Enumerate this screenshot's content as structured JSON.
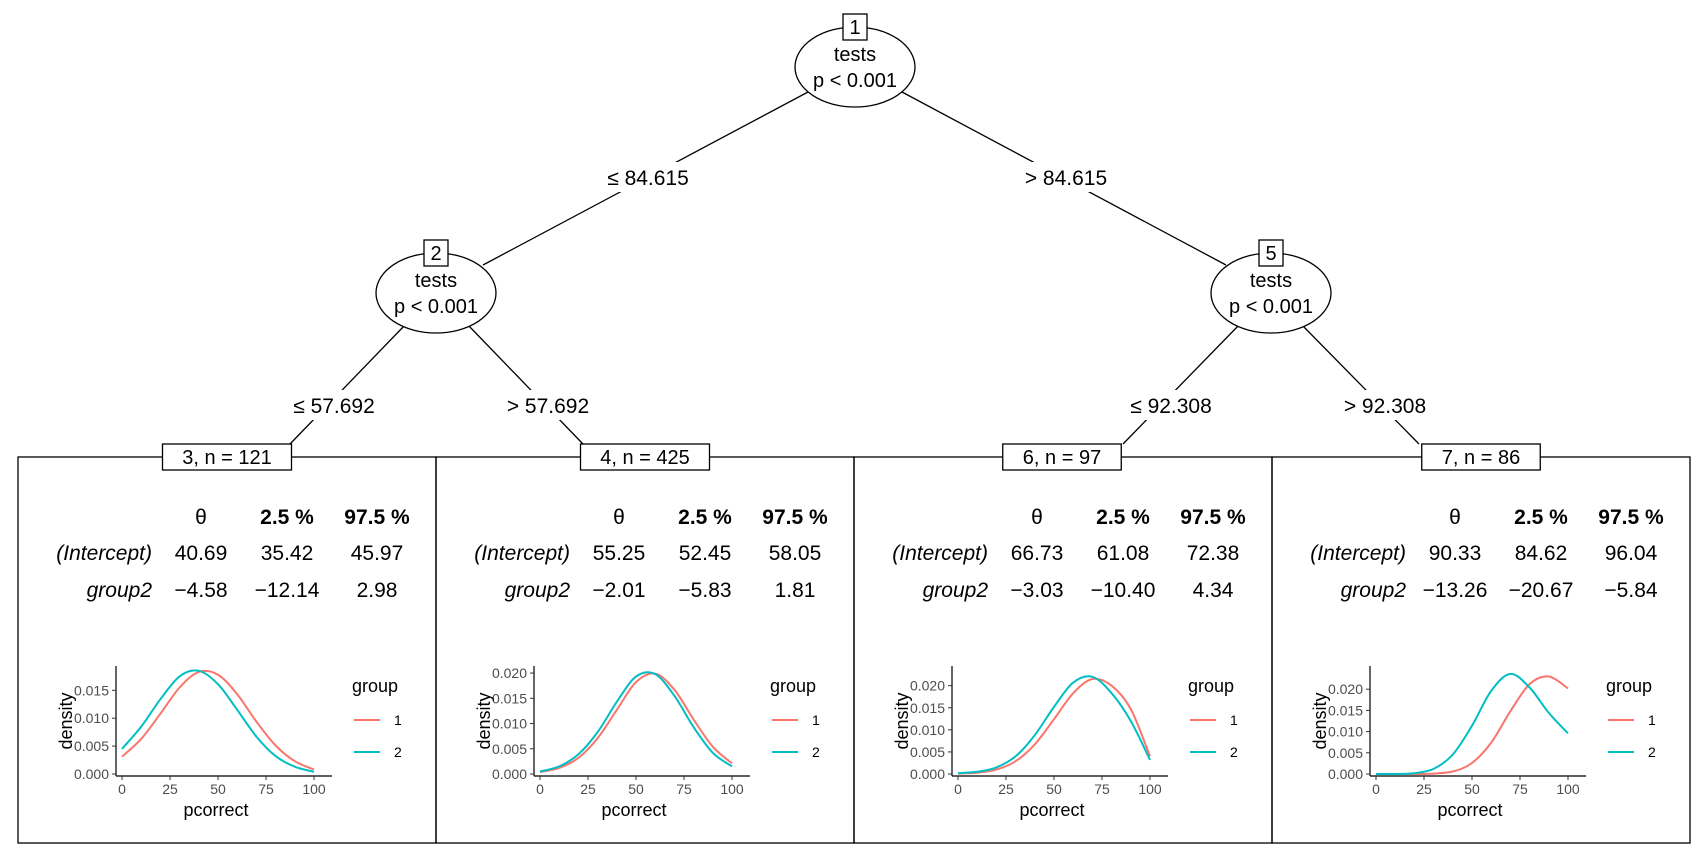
{
  "tree": {
    "nodes": [
      {
        "id": "1",
        "variable": "tests",
        "p": "p < 0.001"
      },
      {
        "id": "2",
        "variable": "tests",
        "p": "p < 0.001"
      },
      {
        "id": "5",
        "variable": "tests",
        "p": "p < 0.001"
      }
    ],
    "edges": [
      {
        "from": "1",
        "to": "2",
        "label": "≤ 84.615"
      },
      {
        "from": "1",
        "to": "5",
        "label": "> 84.615"
      },
      {
        "from": "2",
        "to": "3",
        "label": "≤ 57.692"
      },
      {
        "from": "2",
        "to": "4",
        "label": "> 57.692"
      },
      {
        "from": "5",
        "to": "6",
        "label": "≤ 92.308"
      },
      {
        "from": "5",
        "to": "7",
        "label": "> 92.308"
      }
    ]
  },
  "table_header": {
    "theta": "θ",
    "lo": "2.5 %",
    "hi": "97.5 %"
  },
  "plot_labels": {
    "xlabel": "pcorrect",
    "ylabel": "density",
    "legend_title": "group",
    "legend_items": [
      "1",
      "2"
    ],
    "x_ticks": [
      "0",
      "25",
      "50",
      "75",
      "100"
    ]
  },
  "colors": {
    "group1": "#F8766D",
    "group2": "#00BFC4"
  },
  "chart_data": [
    {
      "type": "line",
      "node_label": "3, n = 121",
      "table": [
        {
          "term": "(Intercept)",
          "theta": "40.69",
          "lo": "35.42",
          "hi": "45.97"
        },
        {
          "term": "group2",
          "theta": "−4.58",
          "lo": "−12.14",
          "hi": "2.98"
        }
      ],
      "xlim": [
        0,
        100
      ],
      "ylim": [
        0,
        0.019
      ],
      "y_ticks": [
        "0.000",
        "0.005",
        "0.010",
        "0.015"
      ],
      "x": [
        0,
        10,
        20,
        30,
        40,
        50,
        60,
        70,
        80,
        90,
        100
      ],
      "series": [
        {
          "name": "1",
          "values": [
            0.0031,
            0.0063,
            0.0108,
            0.0155,
            0.0183,
            0.0178,
            0.0143,
            0.0094,
            0.0051,
            0.0023,
            0.0008
          ]
        },
        {
          "name": "2",
          "values": [
            0.0045,
            0.0085,
            0.0134,
            0.0175,
            0.0185,
            0.0161,
            0.0115,
            0.0067,
            0.0032,
            0.0013,
            0.0004
          ]
        }
      ]
    },
    {
      "type": "line",
      "node_label": "4, n = 425",
      "table": [
        {
          "term": "(Intercept)",
          "theta": "55.25",
          "lo": "52.45",
          "hi": "58.05"
        },
        {
          "term": "group2",
          "theta": "−2.01",
          "lo": "−5.83",
          "hi": "1.81"
        }
      ],
      "xlim": [
        0,
        100
      ],
      "ylim": [
        0,
        0.021
      ],
      "y_ticks": [
        "0.000",
        "0.005",
        "0.010",
        "0.015",
        "0.020"
      ],
      "x": [
        0,
        10,
        20,
        30,
        40,
        50,
        60,
        70,
        80,
        90,
        100
      ],
      "series": [
        {
          "name": "1",
          "values": [
            0.0004,
            0.0012,
            0.0032,
            0.0071,
            0.0127,
            0.0182,
            0.0199,
            0.0167,
            0.0108,
            0.0054,
            0.0021
          ]
        },
        {
          "name": "2",
          "values": [
            0.0005,
            0.0015,
            0.0039,
            0.0083,
            0.0143,
            0.0193,
            0.0198,
            0.0155,
            0.0093,
            0.0042,
            0.0015
          ]
        }
      ]
    },
    {
      "type": "line",
      "node_label": "6, n = 97",
      "table": [
        {
          "term": "(Intercept)",
          "theta": "66.73",
          "lo": "61.08",
          "hi": "72.38"
        },
        {
          "term": "group2",
          "theta": "−3.03",
          "lo": "−10.40",
          "hi": "4.34"
        }
      ],
      "xlim": [
        0,
        100
      ],
      "ylim": [
        0,
        0.024
      ],
      "y_ticks": [
        "0.000",
        "0.005",
        "0.010",
        "0.015",
        "0.020"
      ],
      "x": [
        0,
        10,
        20,
        30,
        40,
        50,
        60,
        70,
        80,
        90,
        100
      ],
      "series": [
        {
          "name": "1",
          "values": [
            0.0001,
            0.0003,
            0.001,
            0.0029,
            0.0067,
            0.0124,
            0.0183,
            0.0215,
            0.02,
            0.0147,
            0.004
          ]
        },
        {
          "name": "2",
          "values": [
            0.0002,
            0.0005,
            0.0015,
            0.004,
            0.0088,
            0.0152,
            0.0207,
            0.022,
            0.0183,
            0.012,
            0.0032
          ]
        }
      ]
    },
    {
      "type": "line",
      "node_label": "7, n = 86",
      "table": [
        {
          "term": "(Intercept)",
          "theta": "90.33",
          "lo": "84.62",
          "hi": "96.04"
        },
        {
          "term": "group2",
          "theta": "−13.26",
          "lo": "−20.67",
          "hi": "−5.84"
        }
      ],
      "xlim": [
        0,
        100
      ],
      "ylim": [
        0,
        0.025
      ],
      "y_ticks": [
        "0.000",
        "0.005",
        "0.010",
        "0.015",
        "0.020"
      ],
      "x": [
        0,
        10,
        20,
        30,
        40,
        50,
        60,
        70,
        80,
        90,
        100
      ],
      "series": [
        {
          "name": "1",
          "values": [
            0.0,
            0.0,
            0.0,
            0.0001,
            0.0006,
            0.0026,
            0.0074,
            0.0148,
            0.0212,
            0.023,
            0.0202
          ]
        },
        {
          "name": "2",
          "values": [
            0.0,
            0.0,
            0.0002,
            0.0012,
            0.0046,
            0.0114,
            0.0196,
            0.0236,
            0.0204,
            0.0144,
            0.0096
          ]
        }
      ]
    }
  ]
}
